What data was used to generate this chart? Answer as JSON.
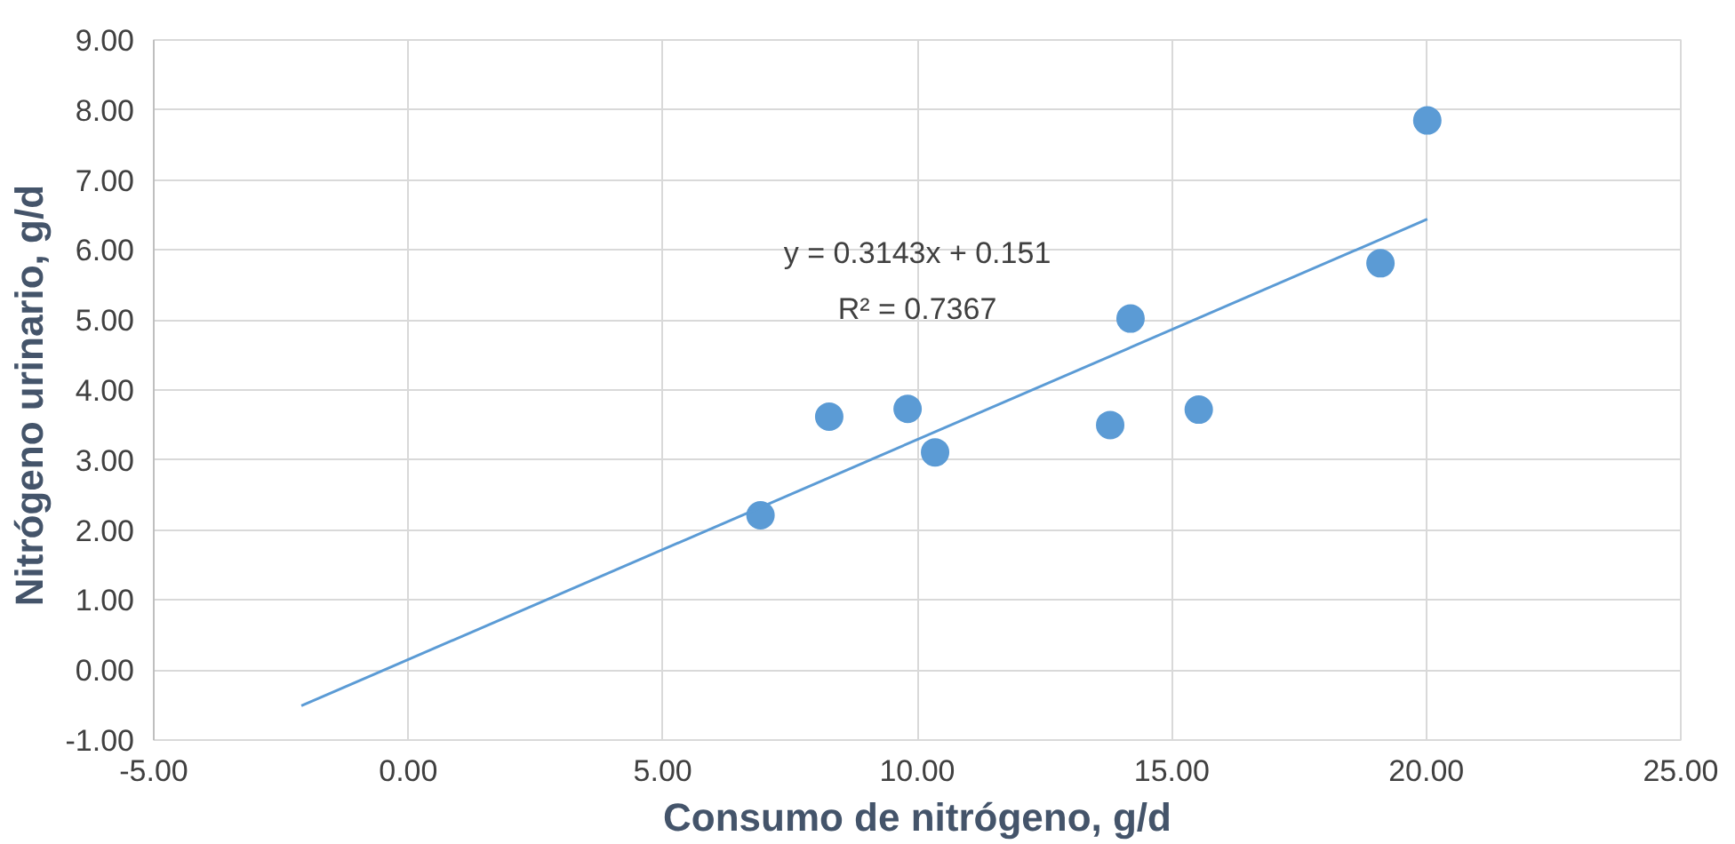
{
  "chart_data": {
    "type": "scatter",
    "xlabel": "Consumo de nitrógeno, g/d",
    "ylabel": "Nitrógeno  urinario, g/d",
    "annotations": [
      "y = 0.3143x + 0.151",
      "R² = 0.7367"
    ],
    "series": [
      {
        "type": "scatter",
        "color": "#5b9bd5",
        "marker": "circle",
        "x": [
          6.92,
          8.27,
          9.81,
          10.35,
          13.79,
          14.19,
          15.53,
          19.1,
          20.02
        ],
        "values": [
          2.21,
          3.62,
          3.73,
          3.11,
          3.5,
          5.02,
          3.72,
          5.81,
          7.85
        ]
      },
      {
        "type": "line",
        "color": "#5b9bd5",
        "x": [
          -2.1,
          20.02
        ],
        "values": [
          -0.51,
          6.44
        ]
      }
    ],
    "xlim": [
      -5,
      25
    ],
    "ylim": [
      -1,
      9
    ],
    "xticks": [
      {
        "value": -5,
        "label": "-5.00"
      },
      {
        "value": 0,
        "label": "0.00"
      },
      {
        "value": 5,
        "label": "5.00"
      },
      {
        "value": 10,
        "label": "10.00"
      },
      {
        "value": 15,
        "label": "15.00"
      },
      {
        "value": 20,
        "label": "20.00"
      },
      {
        "value": 25,
        "label": "25.00"
      }
    ],
    "yticks": [
      {
        "value": -1,
        "label": "-1.00"
      },
      {
        "value": 0,
        "label": "0.00"
      },
      {
        "value": 1,
        "label": "1.00"
      },
      {
        "value": 2,
        "label": "2.00"
      },
      {
        "value": 3,
        "label": "3.00"
      },
      {
        "value": 4,
        "label": "4.00"
      },
      {
        "value": 5,
        "label": "5.00"
      },
      {
        "value": 6,
        "label": "6.00"
      },
      {
        "value": 7,
        "label": "7.00"
      },
      {
        "value": 8,
        "label": "8.00"
      },
      {
        "value": 9,
        "label": "9.00"
      }
    ],
    "grid": true
  }
}
